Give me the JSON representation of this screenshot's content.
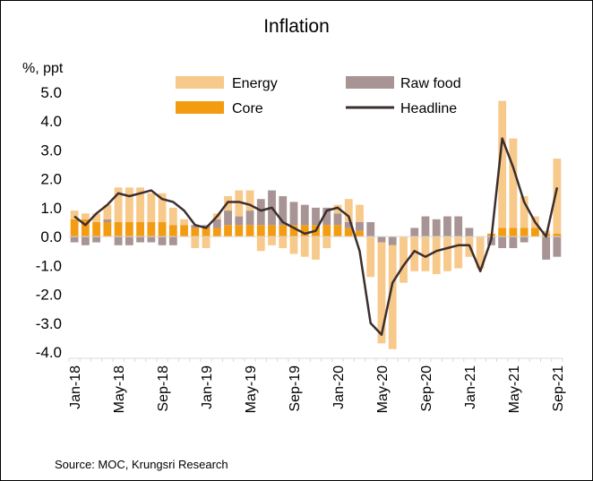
{
  "chart_data": {
    "type": "bar",
    "title": "Inflation",
    "ylabel": "%, ppt",
    "source": "Source:  MOC, Krungsri Research",
    "ylim": [
      -4.0,
      5.0
    ],
    "yticks": [
      "5.0",
      "4.0",
      "3.0",
      "2.0",
      "1.0",
      "0.0",
      "-1.0",
      "-2.0",
      "-3.0",
      "-4.0"
    ],
    "ytick_values": [
      5,
      4,
      3,
      2,
      1,
      0,
      -1,
      -2,
      -3,
      -4
    ],
    "x": [
      "Jan-18",
      "Feb-18",
      "Mar-18",
      "Apr-18",
      "May-18",
      "Jun-18",
      "Jul-18",
      "Aug-18",
      "Sep-18",
      "Oct-18",
      "Nov-18",
      "Dec-18",
      "Jan-19",
      "Feb-19",
      "Mar-19",
      "Apr-19",
      "May-19",
      "Jun-19",
      "Jul-19",
      "Aug-19",
      "Sep-19",
      "Oct-19",
      "Nov-19",
      "Dec-19",
      "Jan-20",
      "Feb-20",
      "Mar-20",
      "Apr-20",
      "May-20",
      "Jun-20",
      "Jul-20",
      "Aug-20",
      "Sep-20",
      "Oct-20",
      "Nov-20",
      "Dec-20",
      "Jan-21",
      "Feb-21",
      "Mar-21",
      "Apr-21",
      "May-21",
      "Jun-21",
      "Jul-21",
      "Aug-21",
      "Sep-21"
    ],
    "xtick_labels": [
      "Jan-18",
      "May-18",
      "Sep-18",
      "Jan-19",
      "May-19",
      "Sep-19",
      "Jan-20",
      "May-20",
      "Sep-20",
      "Jan-21",
      "May-21",
      "Sep-21"
    ],
    "legend_placement": "top",
    "grid": false,
    "series": [
      {
        "name": "Energy",
        "kind": "bar",
        "color": "#f7c98a",
        "values": [
          0.3,
          0.2,
          0.3,
          0.5,
          1.2,
          1.2,
          1.2,
          1.0,
          1.0,
          0.6,
          0.2,
          -0.4,
          -0.4,
          0.2,
          0.5,
          0.9,
          0.7,
          -0.5,
          -0.3,
          -0.4,
          -0.6,
          -0.7,
          -0.8,
          -0.4,
          0.3,
          0.8,
          0.6,
          -1.4,
          -3.5,
          -3.6,
          -1.6,
          -1.2,
          -1.2,
          -1.3,
          -1.2,
          -1.1,
          -0.7,
          -1.1,
          0.0,
          4.4,
          3.1,
          1.1,
          0.4,
          0.1,
          2.6
        ]
      },
      {
        "name": "Raw food",
        "kind": "bar",
        "color": "#a89494",
        "values": [
          -0.2,
          -0.3,
          -0.2,
          0.1,
          -0.3,
          -0.3,
          -0.2,
          -0.2,
          -0.3,
          -0.3,
          0.0,
          0.1,
          0.1,
          0.3,
          0.5,
          0.3,
          0.5,
          0.9,
          1.2,
          1.0,
          0.8,
          0.7,
          0.6,
          0.6,
          0.4,
          0.2,
          0.3,
          0.5,
          -0.2,
          -0.3,
          0.0,
          0.3,
          0.7,
          0.6,
          0.7,
          0.7,
          0.3,
          0.0,
          -0.3,
          -0.4,
          -0.4,
          -0.2,
          0.0,
          -0.8,
          -0.7
        ]
      },
      {
        "name": "Core",
        "kind": "bar",
        "color": "#f39c12",
        "values": [
          0.6,
          0.6,
          0.5,
          0.5,
          0.5,
          0.5,
          0.5,
          0.5,
          0.5,
          0.4,
          0.4,
          0.3,
          0.3,
          0.3,
          0.4,
          0.4,
          0.4,
          0.4,
          0.4,
          0.4,
          0.4,
          0.4,
          0.4,
          0.4,
          0.4,
          0.3,
          0.2,
          0.0,
          0.0,
          0.0,
          0.0,
          0.0,
          0.0,
          0.0,
          0.0,
          0.0,
          0.0,
          0.0,
          0.1,
          0.3,
          0.3,
          0.3,
          0.3,
          0.1,
          0.1
        ]
      },
      {
        "name": "Headline",
        "kind": "line",
        "color": "#3d2e2e",
        "values": [
          0.7,
          0.4,
          0.8,
          1.1,
          1.5,
          1.4,
          1.5,
          1.6,
          1.3,
          1.2,
          0.9,
          0.4,
          0.3,
          0.7,
          1.2,
          1.2,
          1.1,
          0.9,
          1.0,
          0.5,
          0.3,
          0.1,
          0.2,
          0.9,
          1.0,
          0.7,
          -0.5,
          -3.0,
          -3.4,
          -1.6,
          -1.0,
          -0.5,
          -0.7,
          -0.5,
          -0.4,
          -0.3,
          -0.3,
          -1.2,
          -0.1,
          3.4,
          2.4,
          1.2,
          0.5,
          0.0,
          1.7
        ]
      }
    ]
  }
}
